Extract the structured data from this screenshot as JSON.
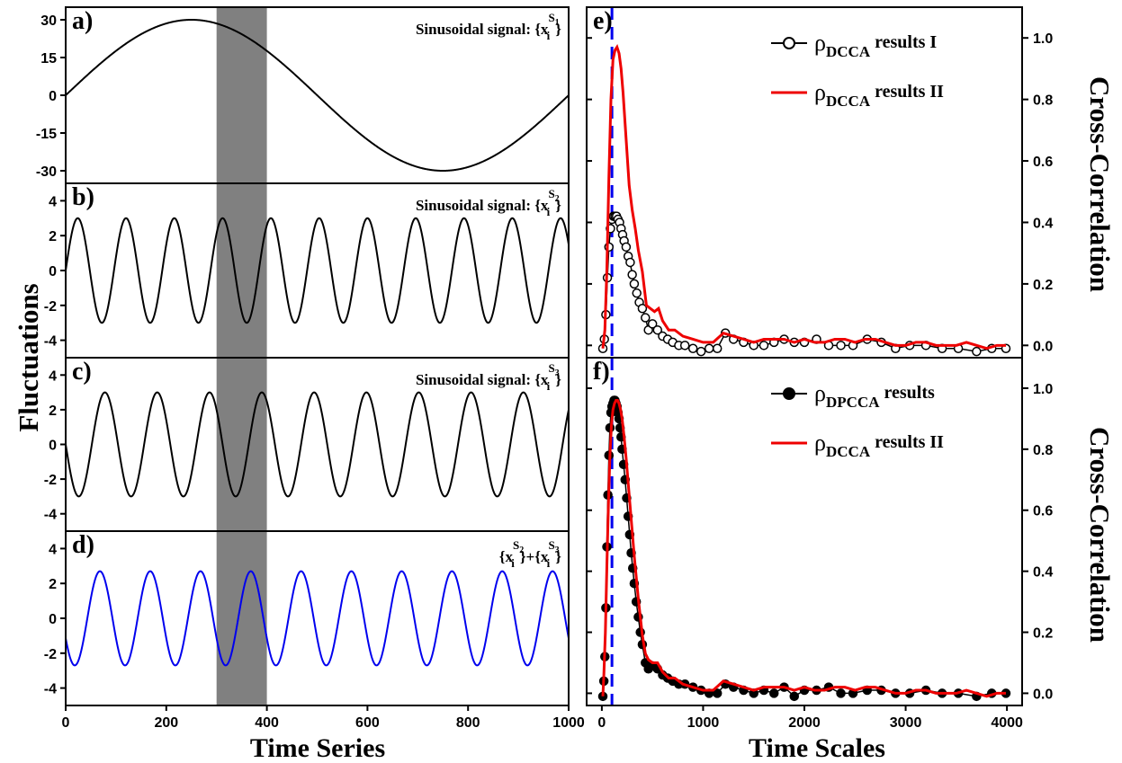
{
  "figure": {
    "left_xlabel": "Time Series",
    "left_ylabel": "Fluctuations",
    "right_xlabel": "Time Scales",
    "right_ylabel_top": "Cross-Correlation",
    "right_ylabel_bottom": "Cross-Correlation"
  },
  "chart_data": [
    {
      "panel": "a)",
      "type": "line",
      "annotation": {
        "prefix": "Sinusoidal signal: {x",
        "sub": "i",
        "sup": "S",
        "supsub": "1",
        "suffix": "}"
      },
      "xlim": [
        0,
        1000
      ],
      "ylim": [
        -35,
        35
      ],
      "yticks": [
        30,
        15,
        0,
        -15,
        -30
      ],
      "ytick_labels": [
        "30",
        "15",
        "0",
        "-15",
        "-30"
      ],
      "signal": {
        "amplitude": 30,
        "period": 1000,
        "phase": 0
      },
      "line_color": "#000000",
      "shaded_x_range": [
        300,
        400
      ],
      "shade_color": "#808080"
    },
    {
      "panel": "b)",
      "type": "line",
      "annotation": {
        "prefix": "Sinusoidal signal: {x",
        "sub": "i",
        "sup": "S",
        "supsub": "2",
        "suffix": "}"
      },
      "xlim": [
        0,
        1000
      ],
      "ylim": [
        -5,
        5
      ],
      "yticks": [
        4,
        2,
        0,
        -2,
        -4
      ],
      "ytick_labels": [
        "4",
        "2",
        "0",
        "-2",
        "-4"
      ],
      "signal": {
        "amplitude": 3,
        "period": 96,
        "phase": 0
      },
      "line_color": "#000000",
      "shaded_x_range": [
        300,
        400
      ],
      "shade_color": "#808080"
    },
    {
      "panel": "c)",
      "type": "line",
      "annotation": {
        "prefix": "Sinusoidal signal: {x",
        "sub": "i",
        "sup": "S",
        "supsub": "3",
        "suffix": "}"
      },
      "xlim": [
        0,
        1000
      ],
      "ylim": [
        -5,
        5
      ],
      "yticks": [
        4,
        2,
        0,
        -2,
        -4
      ],
      "ytick_labels": [
        "4",
        "2",
        "0",
        "-2",
        "-4"
      ],
      "signal": {
        "amplitude": 3,
        "period": 104,
        "phase": 180
      },
      "line_color": "#000000",
      "shaded_x_range": [
        300,
        400
      ],
      "shade_color": "#808080"
    },
    {
      "panel": "d)",
      "type": "line",
      "annotation_sum": {
        "p1": "{x",
        "sub1": "i",
        "sup1": "S",
        "supsub1": "2",
        "mid": "}+{x",
        "sub2": "i",
        "sup2": "S",
        "supsub2": "3",
        "suffix": "}"
      },
      "xlim": [
        0,
        1000
      ],
      "ylim": [
        -5,
        5
      ],
      "yticks": [
        4,
        2,
        0,
        -2,
        -4
      ],
      "ytick_labels": [
        "4",
        "2",
        "0",
        "-2",
        "-4"
      ],
      "xticks": [
        0,
        200,
        400,
        600,
        800,
        1000
      ],
      "xtick_labels": [
        "0",
        "200",
        "400",
        "600",
        "800",
        "1000"
      ],
      "signal": {
        "amplitude": 2.7,
        "period": 100,
        "phase": 205
      },
      "line_color": "#0000ee",
      "shaded_x_range": [
        300,
        400
      ],
      "shade_color": "#808080"
    },
    {
      "panel": "e)",
      "type": "line",
      "xlim": [
        -150,
        4150
      ],
      "ylim": [
        -0.04,
        1.1
      ],
      "yticks": [
        0.0,
        0.2,
        0.4,
        0.6,
        0.8,
        1.0
      ],
      "ytick_labels": [
        "0.0",
        "0.2",
        "0.4",
        "0.6",
        "0.8",
        "1.0"
      ],
      "vline_x": 100,
      "vline_color": "#0000ee",
      "legend_position": "top-right",
      "series": [
        {
          "name": "ρDCCA results I",
          "legend": {
            "rho": "ρ",
            "sub": "DCCA",
            "text": " results I"
          },
          "color": "#000000",
          "marker": "open-circle",
          "x": [
            10,
            25,
            40,
            55,
            70,
            85,
            100,
            115,
            130,
            145,
            160,
            175,
            190,
            205,
            220,
            240,
            260,
            280,
            300,
            320,
            345,
            370,
            400,
            430,
            460,
            500,
            550,
            600,
            650,
            700,
            760,
            820,
            900,
            980,
            1060,
            1140,
            1220,
            1300,
            1400,
            1500,
            1600,
            1700,
            1800,
            1900,
            2000,
            2120,
            2240,
            2360,
            2480,
            2620,
            2760,
            2900,
            3040,
            3200,
            3360,
            3520,
            3700,
            3850,
            3990
          ],
          "y": [
            -0.01,
            0.02,
            0.1,
            0.22,
            0.32,
            0.38,
            0.41,
            0.42,
            0.42,
            0.42,
            0.41,
            0.4,
            0.38,
            0.36,
            0.34,
            0.32,
            0.29,
            0.27,
            0.23,
            0.2,
            0.17,
            0.14,
            0.12,
            0.09,
            0.05,
            0.07,
            0.05,
            0.03,
            0.02,
            0.01,
            0.0,
            0.0,
            -0.01,
            -0.02,
            -0.01,
            -0.01,
            0.04,
            0.02,
            0.01,
            0.0,
            0.0,
            0.01,
            0.02,
            0.01,
            0.01,
            0.02,
            0.0,
            0.0,
            0.0,
            0.02,
            0.01,
            -0.01,
            0.0,
            0.0,
            -0.01,
            -0.01,
            -0.02,
            -0.01,
            -0.01
          ]
        },
        {
          "name": "ρDCCA results II",
          "legend": {
            "rho": "ρ",
            "sub": "DCCA",
            "text": " results II"
          },
          "color": "#ee0000",
          "marker": "none",
          "x": [
            10,
            30,
            50,
            70,
            90,
            110,
            130,
            150,
            170,
            190,
            210,
            230,
            250,
            270,
            300,
            330,
            360,
            400,
            440,
            480,
            520,
            560,
            600,
            660,
            720,
            800,
            900,
            1000,
            1100,
            1200,
            1300,
            1400,
            1500,
            1600,
            1700,
            1800,
            1900,
            2000,
            2100,
            2200,
            2300,
            2400,
            2500,
            2600,
            2700,
            2800,
            2900,
            3000,
            3100,
            3200,
            3300,
            3400,
            3500,
            3600,
            3700,
            3800,
            3900,
            3990
          ],
          "y": [
            -0.01,
            0.05,
            0.25,
            0.55,
            0.8,
            0.93,
            0.96,
            0.97,
            0.95,
            0.9,
            0.82,
            0.72,
            0.62,
            0.52,
            0.44,
            0.38,
            0.31,
            0.24,
            0.13,
            0.12,
            0.11,
            0.12,
            0.08,
            0.05,
            0.05,
            0.03,
            0.02,
            0.01,
            0.01,
            0.04,
            0.03,
            0.02,
            0.01,
            0.02,
            0.02,
            0.02,
            0.01,
            0.02,
            0.01,
            0.01,
            0.02,
            0.02,
            0.01,
            0.02,
            0.02,
            0.01,
            0.0,
            0.0,
            0.01,
            0.01,
            0.0,
            0.0,
            0.0,
            0.01,
            0.0,
            -0.01,
            0.0,
            0.0
          ]
        }
      ]
    },
    {
      "panel": "f)",
      "type": "line",
      "xlim": [
        -150,
        4150
      ],
      "ylim": [
        -0.04,
        1.1
      ],
      "yticks": [
        0.0,
        0.2,
        0.4,
        0.6,
        0.8,
        1.0
      ],
      "ytick_labels": [
        "0.0",
        "0.2",
        "0.4",
        "0.6",
        "0.8",
        "1.0"
      ],
      "xticks": [
        0,
        1000,
        2000,
        3000,
        4000
      ],
      "xtick_labels": [
        "0",
        "1000",
        "2000",
        "3000",
        "4000"
      ],
      "vline_x": 100,
      "vline_color": "#0000ee",
      "legend_position": "top-right",
      "series": [
        {
          "name": "ρDPCCA results",
          "legend": {
            "rho": "ρ",
            "sub": "DPCCA",
            "text": " results"
          },
          "color": "#000000",
          "marker": "filled-circle",
          "x": [
            10,
            20,
            30,
            40,
            50,
            60,
            70,
            80,
            90,
            100,
            110,
            120,
            130,
            140,
            150,
            160,
            170,
            180,
            190,
            200,
            215,
            230,
            245,
            260,
            275,
            290,
            305,
            320,
            340,
            360,
            380,
            400,
            430,
            460,
            500,
            550,
            600,
            650,
            700,
            760,
            820,
            900,
            980,
            1060,
            1140,
            1220,
            1300,
            1400,
            1500,
            1600,
            1700,
            1800,
            1900,
            2000,
            2120,
            2240,
            2360,
            2480,
            2620,
            2760,
            2900,
            3040,
            3200,
            3360,
            3520,
            3700,
            3850,
            3990
          ],
          "y": [
            -0.01,
            0.04,
            0.12,
            0.28,
            0.48,
            0.65,
            0.78,
            0.87,
            0.92,
            0.94,
            0.95,
            0.96,
            0.96,
            0.95,
            0.94,
            0.92,
            0.9,
            0.87,
            0.84,
            0.8,
            0.75,
            0.7,
            0.64,
            0.58,
            0.52,
            0.46,
            0.41,
            0.36,
            0.3,
            0.25,
            0.2,
            0.16,
            0.1,
            0.08,
            0.09,
            0.08,
            0.06,
            0.05,
            0.04,
            0.03,
            0.03,
            0.02,
            0.01,
            0.0,
            0.0,
            0.03,
            0.02,
            0.01,
            0.0,
            0.01,
            0.0,
            0.02,
            -0.01,
            0.01,
            0.01,
            0.02,
            0.0,
            0.0,
            0.01,
            0.01,
            0.0,
            0.0,
            0.01,
            0.0,
            0.0,
            -0.01,
            0.0,
            0.0
          ]
        },
        {
          "name": "ρDCCA results II",
          "legend": {
            "rho": "ρ",
            "sub": "DCCA",
            "text": " results II"
          },
          "color": "#ee0000",
          "marker": "none",
          "x": [
            10,
            20,
            35,
            50,
            65,
            80,
            95,
            110,
            125,
            140,
            155,
            170,
            185,
            200,
            220,
            240,
            260,
            280,
            300,
            320,
            340,
            360,
            380,
            400,
            430,
            460,
            500,
            550,
            600,
            660,
            720,
            800,
            900,
            1000,
            1100,
            1200,
            1300,
            1400,
            1500,
            1600,
            1700,
            1800,
            1900,
            2000,
            2100,
            2200,
            2300,
            2400,
            2500,
            2600,
            2700,
            2800,
            2900,
            3000,
            3100,
            3200,
            3300,
            3400,
            3500,
            3600,
            3700,
            3800,
            3900,
            3990
          ],
          "y": [
            -0.01,
            0.06,
            0.2,
            0.42,
            0.62,
            0.78,
            0.88,
            0.93,
            0.95,
            0.96,
            0.96,
            0.95,
            0.93,
            0.9,
            0.84,
            0.77,
            0.69,
            0.61,
            0.53,
            0.45,
            0.38,
            0.31,
            0.25,
            0.19,
            0.13,
            0.11,
            0.1,
            0.1,
            0.07,
            0.05,
            0.05,
            0.03,
            0.02,
            0.01,
            0.01,
            0.04,
            0.03,
            0.02,
            0.01,
            0.02,
            0.02,
            0.02,
            0.01,
            0.02,
            0.01,
            0.01,
            0.02,
            0.02,
            0.01,
            0.02,
            0.02,
            0.01,
            0.0,
            0.0,
            0.01,
            0.01,
            0.0,
            0.0,
            0.0,
            0.01,
            0.0,
            -0.01,
            0.0,
            0.0
          ]
        }
      ]
    }
  ]
}
